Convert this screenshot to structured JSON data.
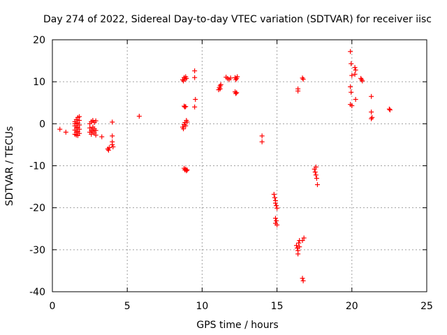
{
  "chart_data": {
    "type": "scatter",
    "title": "Day 274 of 2022, Sidereal Day-to-day VTEC variation (SDTVAR) for receiver iisc",
    "xlabel": "GPS time / hours",
    "ylabel": "SDTVAR / TECUs",
    "xlim": [
      0,
      25
    ],
    "ylim": [
      -40,
      20
    ],
    "xticks": [
      0,
      5,
      10,
      15,
      20,
      25
    ],
    "yticks": [
      -40,
      -30,
      -20,
      -10,
      0,
      10,
      20
    ],
    "xtick_labels": [
      "0",
      "5",
      "10",
      "15",
      "20",
      "25"
    ],
    "ytick_labels": [
      "-40",
      "-30",
      "-20",
      "-10",
      "0",
      "10",
      "20"
    ],
    "grid": true,
    "marker": "+",
    "marker_color": "#ff0000",
    "series": [
      {
        "name": "SDTVAR",
        "points": [
          [
            0.5,
            -1.3
          ],
          [
            0.9,
            -2.0
          ],
          [
            1.5,
            0.5
          ],
          [
            1.5,
            -0.5
          ],
          [
            1.5,
            -1.5
          ],
          [
            1.5,
            -2.5
          ],
          [
            1.6,
            1.0
          ],
          [
            1.6,
            0.0
          ],
          [
            1.6,
            -1.0
          ],
          [
            1.6,
            -2.0
          ],
          [
            1.7,
            1.5
          ],
          [
            1.7,
            0.2
          ],
          [
            1.7,
            -0.8
          ],
          [
            1.7,
            -1.8
          ],
          [
            1.7,
            -2.8
          ],
          [
            1.8,
            1.7
          ],
          [
            1.8,
            0.8
          ],
          [
            1.8,
            -0.3
          ],
          [
            1.8,
            -1.3
          ],
          [
            1.8,
            -2.3
          ],
          [
            1.6,
            -2.7
          ],
          [
            1.5,
            0.0
          ],
          [
            2.5,
            0.0
          ],
          [
            2.5,
            -1.0
          ],
          [
            2.5,
            -2.0
          ],
          [
            2.6,
            0.5
          ],
          [
            2.6,
            -1.5
          ],
          [
            2.6,
            -2.5
          ],
          [
            2.7,
            0.8
          ],
          [
            2.7,
            -0.8
          ],
          [
            2.7,
            -1.8
          ],
          [
            2.8,
            0.3
          ],
          [
            2.8,
            -1.2
          ],
          [
            2.8,
            -2.2
          ],
          [
            2.9,
            0.7
          ],
          [
            2.9,
            -1.6
          ],
          [
            2.9,
            -2.7
          ],
          [
            3.3,
            -3.1
          ],
          [
            3.7,
            -6.0
          ],
          [
            3.75,
            -6.3
          ],
          [
            3.8,
            -5.7
          ],
          [
            4.0,
            0.4
          ],
          [
            4.0,
            -2.9
          ],
          [
            4.0,
            -4.3
          ],
          [
            4.0,
            -5.0
          ],
          [
            4.05,
            -5.5
          ],
          [
            5.8,
            1.8
          ],
          [
            8.7,
            10.5
          ],
          [
            8.75,
            10.2
          ],
          [
            8.8,
            11.0
          ],
          [
            8.85,
            10.6
          ],
          [
            8.9,
            11.2
          ],
          [
            8.95,
            10.8
          ],
          [
            8.8,
            4.2
          ],
          [
            8.85,
            4.0
          ],
          [
            8.9,
            4.1
          ],
          [
            8.7,
            -0.8
          ],
          [
            8.75,
            -1.2
          ],
          [
            8.8,
            -0.2
          ],
          [
            8.85,
            0.3
          ],
          [
            8.9,
            -0.5
          ],
          [
            8.95,
            0.8
          ],
          [
            9.0,
            0.4
          ],
          [
            8.8,
            -10.6
          ],
          [
            8.85,
            -11.0
          ],
          [
            8.9,
            -10.8
          ],
          [
            8.95,
            -11.2
          ],
          [
            9.0,
            -11.0
          ],
          [
            9.5,
            12.6
          ],
          [
            9.5,
            11.0
          ],
          [
            9.55,
            5.8
          ],
          [
            9.5,
            4.0
          ],
          [
            11.1,
            8.1
          ],
          [
            11.15,
            8.6
          ],
          [
            11.2,
            9.0
          ],
          [
            11.25,
            9.3
          ],
          [
            11.2,
            8.3
          ],
          [
            11.6,
            11.1
          ],
          [
            11.7,
            10.8
          ],
          [
            11.8,
            10.5
          ],
          [
            11.9,
            10.9
          ],
          [
            12.2,
            11.0
          ],
          [
            12.25,
            10.5
          ],
          [
            12.3,
            10.8
          ],
          [
            12.35,
            11.2
          ],
          [
            12.2,
            7.6
          ],
          [
            12.25,
            7.2
          ],
          [
            12.3,
            7.4
          ],
          [
            14.0,
            -2.9
          ],
          [
            14.0,
            -4.3
          ],
          [
            14.8,
            -16.8
          ],
          [
            14.85,
            -17.6
          ],
          [
            14.9,
            -18.3
          ],
          [
            14.9,
            -18.9
          ],
          [
            14.95,
            -19.5
          ],
          [
            15.0,
            -20.1
          ],
          [
            14.9,
            -22.5
          ],
          [
            14.95,
            -23.1
          ],
          [
            14.9,
            -23.7
          ],
          [
            15.0,
            -24.1
          ],
          [
            16.4,
            8.3
          ],
          [
            16.4,
            7.8
          ],
          [
            16.3,
            -29.0
          ],
          [
            16.35,
            -29.6
          ],
          [
            16.4,
            -30.2
          ],
          [
            16.4,
            -31.0
          ],
          [
            16.45,
            -28.4
          ],
          [
            16.5,
            -27.8
          ],
          [
            16.5,
            -29.3
          ],
          [
            16.8,
            -27.2
          ],
          [
            16.7,
            -27.8
          ],
          [
            16.7,
            10.9
          ],
          [
            16.75,
            10.6
          ],
          [
            16.7,
            -36.8
          ],
          [
            16.75,
            -37.4
          ],
          [
            17.5,
            -10.8
          ],
          [
            17.55,
            -11.5
          ],
          [
            17.6,
            -12.2
          ],
          [
            17.65,
            -13.0
          ],
          [
            17.6,
            -10.3
          ],
          [
            17.7,
            -14.5
          ],
          [
            19.9,
            17.2
          ],
          [
            19.95,
            14.3
          ],
          [
            20.0,
            11.5
          ],
          [
            19.9,
            8.8
          ],
          [
            19.95,
            7.5
          ],
          [
            19.9,
            4.6
          ],
          [
            20.0,
            4.3
          ],
          [
            20.2,
            13.4
          ],
          [
            20.25,
            12.8
          ],
          [
            20.2,
            11.8
          ],
          [
            20.25,
            5.8
          ],
          [
            20.6,
            10.8
          ],
          [
            20.65,
            10.5
          ],
          [
            20.7,
            10.2
          ],
          [
            21.3,
            6.5
          ],
          [
            21.3,
            2.8
          ],
          [
            21.35,
            1.5
          ],
          [
            21.3,
            1.2
          ],
          [
            22.5,
            3.5
          ],
          [
            22.55,
            3.3
          ]
        ]
      }
    ]
  }
}
